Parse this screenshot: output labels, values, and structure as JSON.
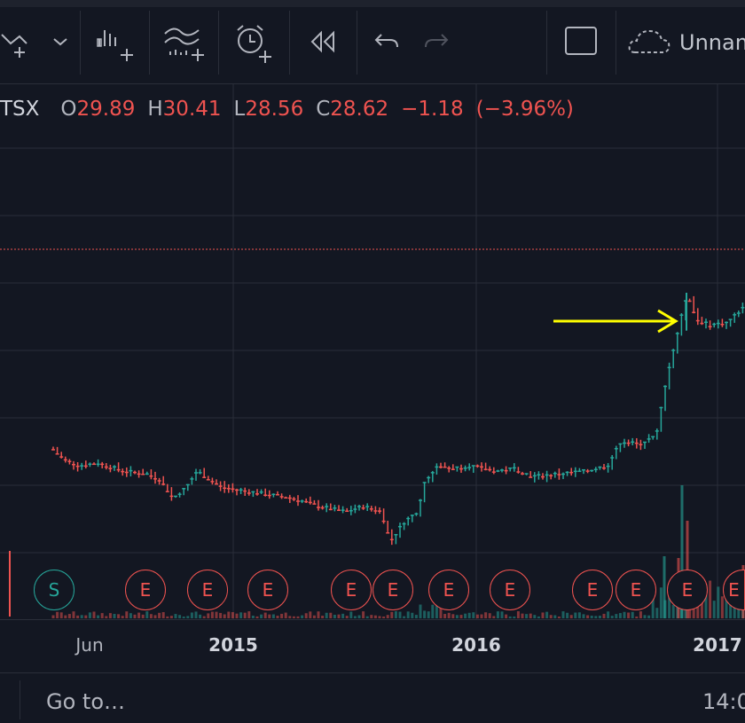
{
  "toolbar": {
    "layout_name": "Unnam",
    "icons": [
      "line-tool-icon",
      "dropdown-chevron-icon",
      "bar-indicator-icon",
      "indicators-icon",
      "alert-clock-icon",
      "replay-icon",
      "undo-icon",
      "redo-icon",
      "fullscreen-icon",
      "cloud-save-icon"
    ]
  },
  "legend": {
    "symbol": "TSX",
    "open_label": "O",
    "open": "29.89",
    "high_label": "H",
    "high": "30.41",
    "low_label": "L",
    "low": "28.56",
    "close_label": "C",
    "close": "28.62",
    "change": "−1.18",
    "change_pct": "(−3.96%)"
  },
  "colors": {
    "up": "#26a69a",
    "down": "#ef5350",
    "background": "#131722",
    "grid": "#2a2e39",
    "annotation_arrow": "#ffff00"
  },
  "chart_data": {
    "type": "candlestick",
    "x_tick_labels": [
      "Jun",
      "2015",
      "2016",
      "2017"
    ],
    "markers": [
      {
        "label": "S",
        "kind": "split"
      },
      {
        "label": "E",
        "kind": "earnings"
      },
      {
        "label": "E",
        "kind": "earnings"
      },
      {
        "label": "E",
        "kind": "earnings"
      },
      {
        "label": "E",
        "kind": "earnings"
      },
      {
        "label": "E",
        "kind": "earnings"
      },
      {
        "label": "E",
        "kind": "earnings"
      },
      {
        "label": "E",
        "kind": "earnings"
      },
      {
        "label": "E",
        "kind": "earnings"
      },
      {
        "label": "E",
        "kind": "earnings"
      },
      {
        "label": "E",
        "kind": "earnings"
      },
      {
        "label": "E",
        "kind": "earnings"
      }
    ],
    "series_path": [
      [
        60,
        0.42
      ],
      [
        66,
        0.4
      ],
      [
        74,
        0.38
      ],
      [
        90,
        0.36
      ],
      [
        110,
        0.37
      ],
      [
        140,
        0.34
      ],
      [
        165,
        0.33
      ],
      [
        180,
        0.31
      ],
      [
        195,
        0.24
      ],
      [
        210,
        0.28
      ],
      [
        222,
        0.34
      ],
      [
        236,
        0.31
      ],
      [
        250,
        0.28
      ],
      [
        270,
        0.27
      ],
      [
        290,
        0.26
      ],
      [
        310,
        0.25
      ],
      [
        330,
        0.24
      ],
      [
        360,
        0.21
      ],
      [
        390,
        0.19
      ],
      [
        410,
        0.21
      ],
      [
        430,
        0.19
      ],
      [
        440,
        0.08
      ],
      [
        455,
        0.15
      ],
      [
        470,
        0.19
      ],
      [
        480,
        0.31
      ],
      [
        495,
        0.36
      ],
      [
        510,
        0.35
      ],
      [
        530,
        0.36
      ],
      [
        560,
        0.34
      ],
      [
        580,
        0.35
      ],
      [
        600,
        0.32
      ],
      [
        630,
        0.33
      ],
      [
        660,
        0.34
      ],
      [
        685,
        0.36
      ],
      [
        700,
        0.45
      ],
      [
        720,
        0.44
      ],
      [
        740,
        0.47
      ],
      [
        750,
        0.66
      ],
      [
        760,
        0.8
      ],
      [
        775,
        1.0
      ],
      [
        785,
        0.9
      ],
      [
        800,
        0.88
      ],
      [
        820,
        0.89
      ],
      [
        840,
        0.95
      ]
    ],
    "spike_high": [
      775,
      1.0
    ],
    "annotation": "yellow arrow pointing at 2016 high"
  },
  "xaxis": {
    "labels": [
      "Jun",
      "2015",
      "2016",
      "2017"
    ]
  },
  "bottombar": {
    "goto": "Go to…",
    "time": "14:0"
  }
}
